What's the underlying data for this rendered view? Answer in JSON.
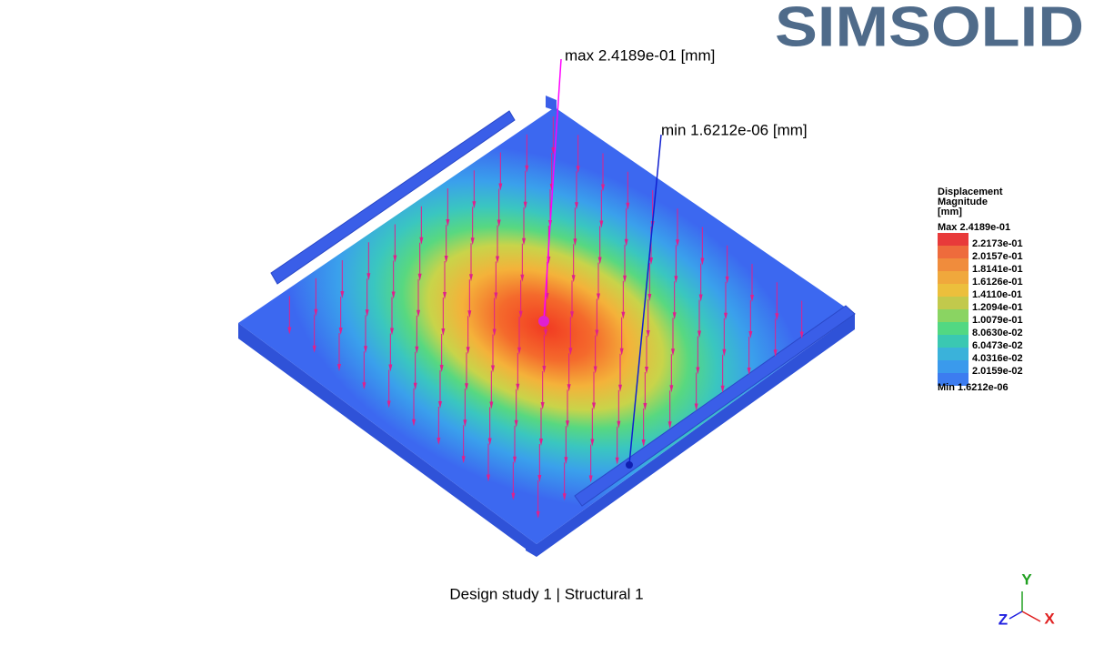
{
  "logo": "SIMSOLID",
  "annotations": {
    "max": "max  2.4189e-01  [mm]",
    "min": "min  1.6212e-06  [mm]"
  },
  "legend": {
    "title": [
      "Displacement",
      "Magnitude",
      "[mm]"
    ],
    "max": "Max  2.4189e-01",
    "bands": [
      "#e83a3a",
      "#ee6b3c",
      "#f08c3c",
      "#f0a83c",
      "#ecbf3c",
      "#c2c94c",
      "#8ad462",
      "#52d882",
      "#3ac8b2",
      "#3ab2da",
      "#3a9aec",
      "#3c7cf0"
    ],
    "labels": [
      "2.2173e-01",
      "2.0157e-01",
      "1.8141e-01",
      "1.6126e-01",
      "1.4110e-01",
      "1.2094e-01",
      "1.0079e-01",
      "8.0630e-02",
      "6.0473e-02",
      "4.0316e-02",
      "2.0159e-02"
    ],
    "min": "Min  1.6212e-06"
  },
  "caption": "Design study 1 | Structural  1",
  "triad": {
    "y": "Y",
    "z": "Z",
    "x": "X"
  }
}
